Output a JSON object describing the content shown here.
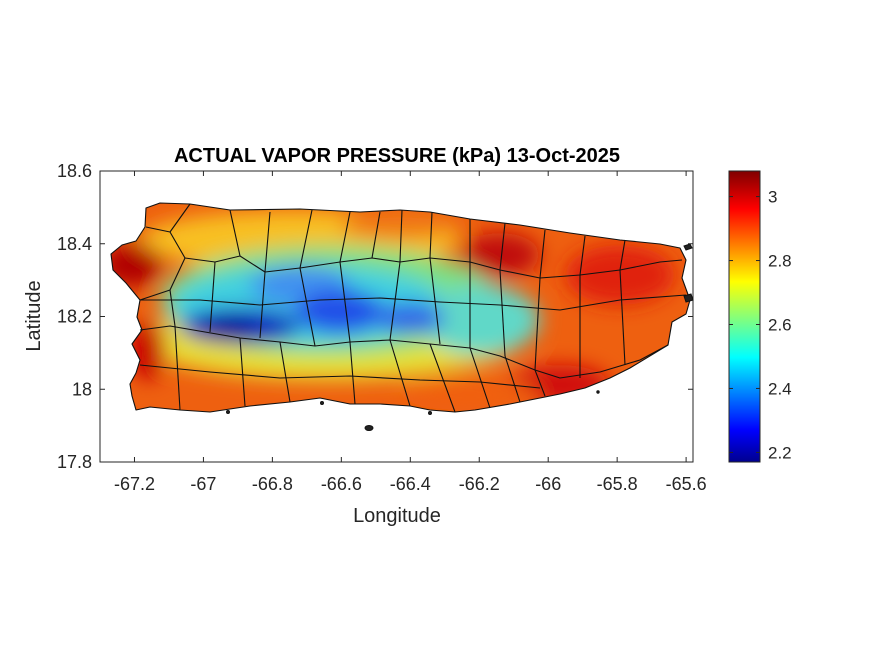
{
  "chart_data": {
    "type": "heatmap",
    "title": "ACTUAL VAPOR PRESSURE (kPa) 13-Oct-2025",
    "xlabel": "Longitude",
    "ylabel": "Latitude",
    "xlim": [
      -67.3,
      -65.58
    ],
    "ylim": [
      17.8,
      18.6
    ],
    "xticks": [
      -67.2,
      -67,
      -66.8,
      -66.6,
      -66.4,
      -66.2,
      -66,
      -65.8,
      -65.6
    ],
    "xtick_labels": [
      "-67.2",
      "-67",
      "-66.8",
      "-66.6",
      "-66.4",
      "-66.2",
      "-66",
      "-65.8",
      "-65.6"
    ],
    "yticks": [
      17.8,
      18,
      18.2,
      18.4,
      18.6
    ],
    "ytick_labels": [
      "17.8",
      "18",
      "18.2",
      "18.4",
      "18.6"
    ],
    "colorbar": {
      "colormap": "jet",
      "range": [
        2.17,
        3.08
      ],
      "ticks": [
        2.2,
        2.4,
        2.6,
        2.8,
        3
      ],
      "tick_labels": [
        "2.2",
        "2.4",
        "2.6",
        "2.8",
        "3"
      ],
      "location": "right"
    },
    "grid": false,
    "region": "Puerto Rico",
    "features": [
      {
        "kind": "low",
        "lon": -66.9,
        "lat": 18.17,
        "value": 2.2
      },
      {
        "kind": "low",
        "lon": -66.6,
        "lat": 18.19,
        "value": 2.3
      },
      {
        "kind": "low",
        "lon": -66.45,
        "lat": 18.2,
        "value": 2.38
      },
      {
        "kind": "low",
        "lon": -66.75,
        "lat": 18.29,
        "value": 2.5
      },
      {
        "kind": "low",
        "lon": -66.15,
        "lat": 18.18,
        "value": 2.5
      },
      {
        "kind": "high",
        "lon": -67.22,
        "lat": 18.35,
        "value": 3.0
      },
      {
        "kind": "high",
        "lon": -66.1,
        "lat": 18.37,
        "value": 3.0
      },
      {
        "kind": "high",
        "lon": -65.95,
        "lat": 18.0,
        "value": 3.0
      },
      {
        "kind": "high",
        "lon": -67.18,
        "lat": 18.1,
        "value": 3.0
      },
      {
        "kind": "high",
        "lon": -65.75,
        "lat": 18.32,
        "value": 2.95
      }
    ]
  }
}
